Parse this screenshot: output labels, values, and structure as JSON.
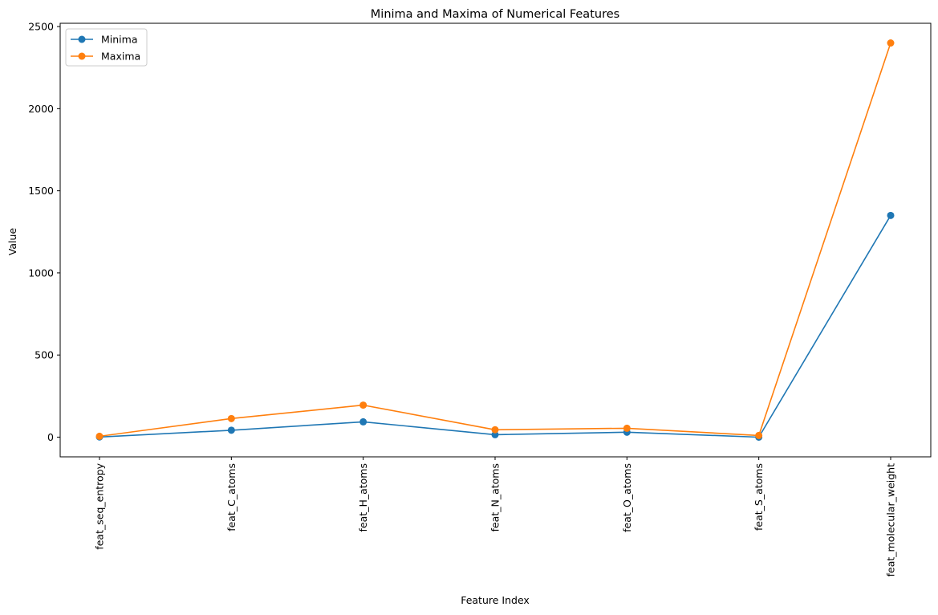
{
  "chart_data": {
    "type": "line",
    "title": "Minima and Maxima of Numerical Features",
    "xlabel": "Feature Index",
    "ylabel": "Value",
    "categories": [
      "feat_seq_entropy",
      "feat_C_atoms",
      "feat_H_atoms",
      "feat_N_atoms",
      "feat_O_atoms",
      "feat_S_atoms",
      "feat_molecular_weight"
    ],
    "series": [
      {
        "name": "Minima",
        "color": "#1f77b4",
        "values": [
          1,
          42,
          93,
          15,
          30,
          0,
          1350
        ]
      },
      {
        "name": "Maxima",
        "color": "#ff7f0e",
        "values": [
          5,
          113,
          195,
          45,
          54,
          10,
          2400
        ]
      }
    ],
    "ylim": [
      -120,
      2520
    ],
    "yticks": [
      0,
      500,
      1000,
      1500,
      2000,
      2500
    ],
    "grid": false,
    "legend_position": "top-left"
  }
}
